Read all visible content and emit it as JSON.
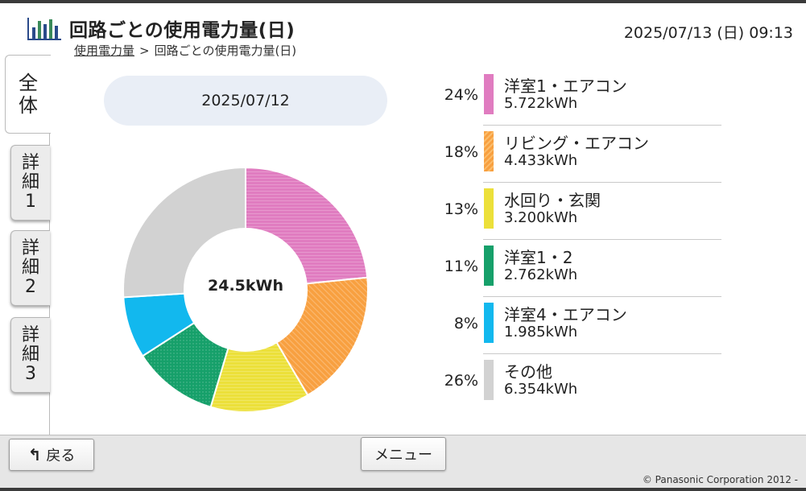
{
  "header": {
    "title": "回路ごとの使用電力量(日)",
    "breadcrumb_link": "使用電力量",
    "breadcrumb_sep": ">",
    "breadcrumb_current": "回路ごとの使用電力量(日)",
    "datetime": "2025/07/13 (日) 09:13",
    "logo_icon": "bar-chart-icon"
  },
  "tabs": [
    {
      "label": "全体",
      "active": true
    },
    {
      "label": "詳細1",
      "active": false
    },
    {
      "label": "詳細2",
      "active": false
    },
    {
      "label": "詳細3",
      "active": false
    }
  ],
  "date": "2025/07/12",
  "total": "24.5kWh",
  "chart_data": {
    "type": "pie",
    "total": "24.5kWh",
    "categories": [
      "洋室1・エアコン",
      "リビング・エアコン",
      "水回り・玄関",
      "洋室1・2",
      "洋室4・エアコン",
      "その他"
    ],
    "values": [
      5.722,
      4.433,
      3.2,
      2.762,
      1.985,
      6.354
    ],
    "percent": [
      24,
      18,
      13,
      11,
      8,
      26
    ],
    "colors": [
      "#e07cc0",
      "#f8a040",
      "#ece03a",
      "#16a06a",
      "#12b8ee",
      "#d2d2d2"
    ]
  },
  "legend": [
    {
      "pct": "24%",
      "name": "洋室1・エアコン",
      "kwh": "5.722kWh",
      "color": "#e07cc0"
    },
    {
      "pct": "18%",
      "name": "リビング・エアコン",
      "kwh": "4.433kWh",
      "color": "#f8a040"
    },
    {
      "pct": "13%",
      "name": "水回り・玄関",
      "kwh": "3.200kWh",
      "color": "#ece03a"
    },
    {
      "pct": "11%",
      "name": "洋室1・2",
      "kwh": "2.762kWh",
      "color": "#16a06a"
    },
    {
      "pct": "8%",
      "name": "洋室4・エアコン",
      "kwh": "1.985kWh",
      "color": "#12b8ee"
    },
    {
      "pct": "26%",
      "name": "その他",
      "kwh": "6.354kWh",
      "color": "#d2d2d2"
    }
  ],
  "footer": {
    "back_label": "戻る",
    "back_icon": "return-arrow-icon",
    "menu_label": "メニュー",
    "copyright": "© Panasonic Corporation 2012 -"
  }
}
